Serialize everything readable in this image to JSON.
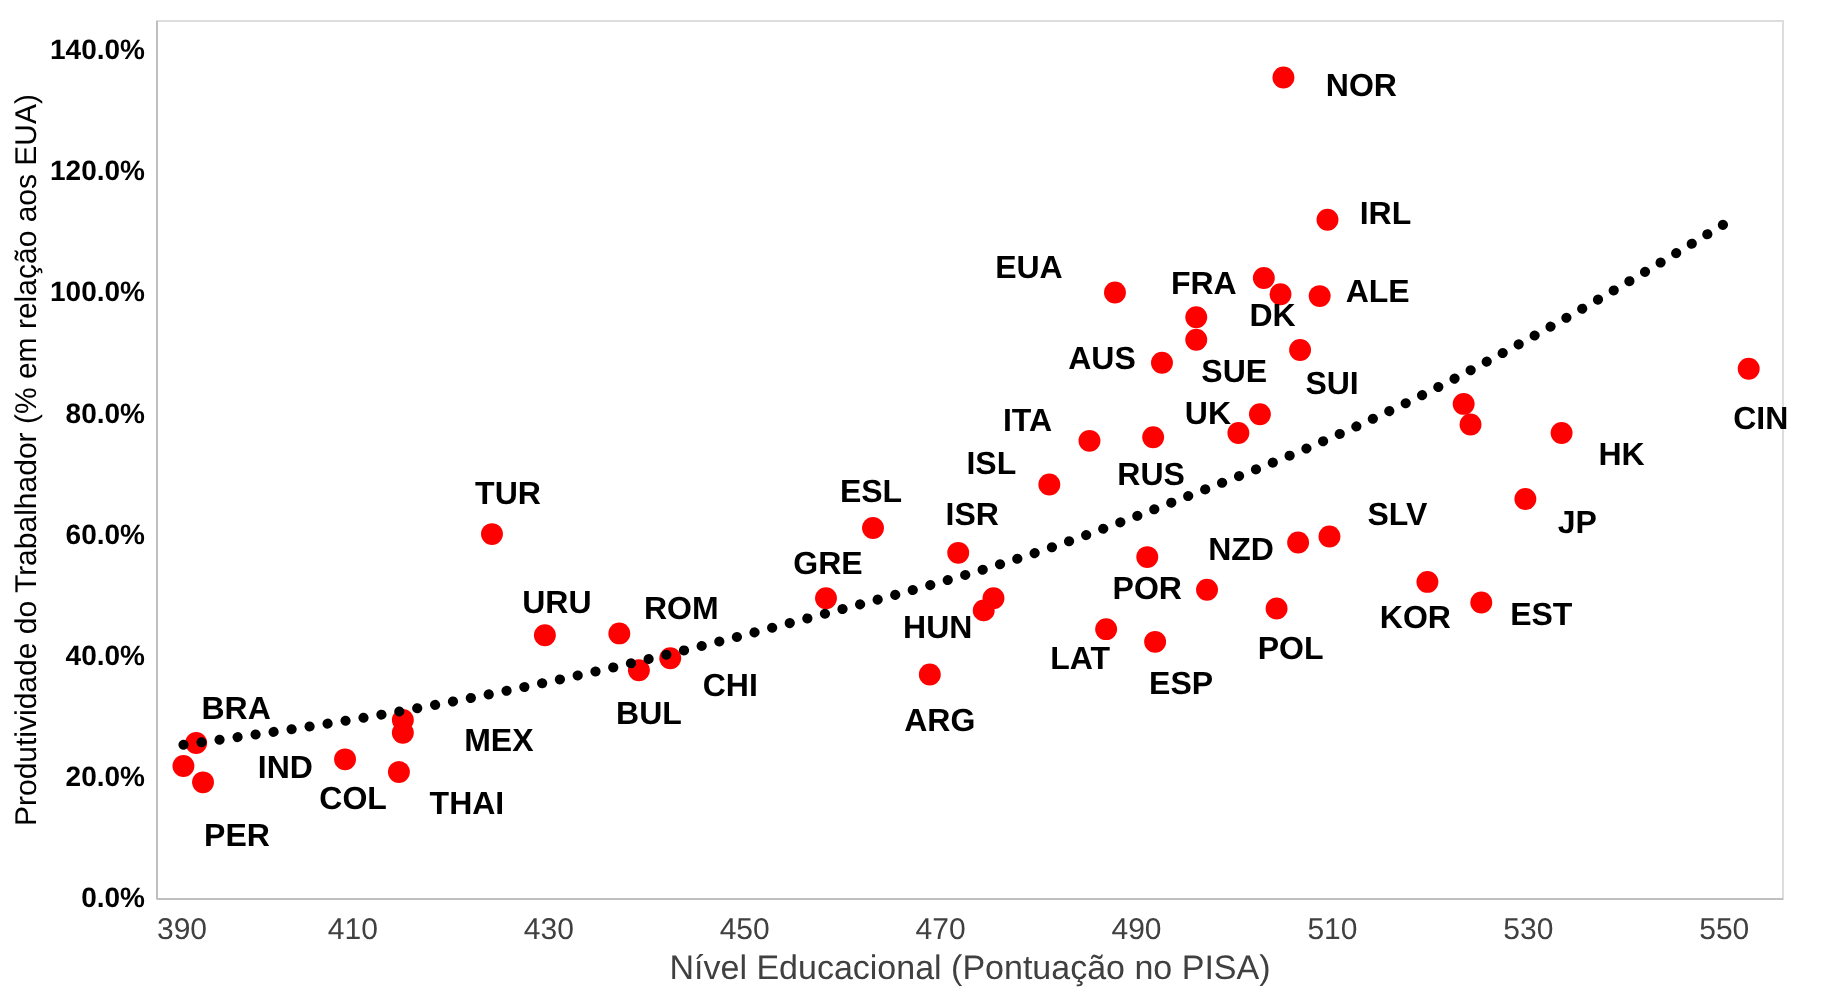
{
  "chart_data": {
    "type": "scatter",
    "xlabel": "Nível Educacional (Pontuação no PISA)",
    "ylabel": "Produtividade do Trabalhador (% em relação aos EUA)",
    "xlim": [
      390,
      556
    ],
    "xticks": [
      390,
      410,
      430,
      450,
      470,
      490,
      510,
      530,
      550
    ],
    "ylim": [
      0,
      145
    ],
    "yticks": [
      {
        "value": 0,
        "label": "0.0%"
      },
      {
        "value": 20,
        "label": "20.0%"
      },
      {
        "value": 40,
        "label": "40.0%"
      },
      {
        "value": 60,
        "label": "60.0%"
      },
      {
        "value": 80,
        "label": "80.0%"
      },
      {
        "value": 100,
        "label": "100.0%"
      },
      {
        "value": 120,
        "label": "120.0%"
      },
      {
        "value": 140,
        "label": "140.0%"
      }
    ],
    "grid": false,
    "marker": "circle",
    "series": [
      {
        "color": "#ff0000",
        "x": [
          394.1,
          392.8,
          394.8,
          409.3,
          414.8,
          415.2,
          415.2,
          424.3,
          429.7,
          437.3,
          439.3,
          442.5,
          458.4,
          463.2,
          471.9,
          475.5,
          474.5,
          469.0,
          481.2,
          485.3,
          487.9,
          492.7,
          496.2,
          496.2,
          491.8,
          502.7,
          500.5,
          491.2,
          487.0,
          492.0,
          497.3,
          504.4,
          506.6,
          509.8,
          506.8,
          505.1,
          509.6,
          503.1,
          504.8,
          508.8,
          523.5,
          524.2,
          533.5,
          529.8,
          519.8,
          525.3,
          552.6
        ],
        "values": [
          25.6,
          21.8,
          19.1,
          22.9,
          20.8,
          27.3,
          29.4,
          60.1,
          43.4,
          43.7,
          37.6,
          39.6,
          49.5,
          61.1,
          57.0,
          49.5,
          47.5,
          36.9,
          68.3,
          75.5,
          100.0,
          88.4,
          95.9,
          92.2,
          76.1,
          79.9,
          76.8,
          56.3,
          44.4,
          42.3,
          50.9,
          47.8,
          58.7,
          59.7,
          90.5,
          135.5,
          112.0,
          102.4,
          99.7,
          99.4,
          81.6,
          78.2,
          76.8,
          65.9,
          52.2,
          48.8,
          87.4
        ]
      },
      {
        "type": "line",
        "color": "#000000",
        "line_style": "dotted",
        "marker": "none",
        "x": [
          392.8,
          414.5,
          436.2,
          454.7,
          481.6,
          496.2,
          507.7,
          518.7,
          532.2,
          550.4
        ],
        "values": [
          25.3,
          30.7,
          37.9,
          45.4,
          58.0,
          66.9,
          74.4,
          82.6,
          94.2,
          111.6
        ]
      }
    ],
    "annotations": [
      {
        "text": "BRA",
        "x": 394.1,
        "y": 25.6
      },
      {
        "text": "IND",
        "x": 392.8,
        "y": 21.8
      },
      {
        "text": "PER",
        "x": 394.8,
        "y": 19.1
      },
      {
        "text": "COL",
        "x": 409.3,
        "y": 22.9
      },
      {
        "text": "THAI",
        "x": 414.8,
        "y": 20.8
      },
      {
        "text": "MEX",
        "x": 415.2,
        "y": 27.3
      },
      {
        "text": "TUR",
        "x": 424.3,
        "y": 60.1
      },
      {
        "text": "URU",
        "x": 429.7,
        "y": 43.4
      },
      {
        "text": "ROM",
        "x": 437.3,
        "y": 43.7
      },
      {
        "text": "BUL",
        "x": 439.3,
        "y": 37.6
      },
      {
        "text": "CHI",
        "x": 442.5,
        "y": 39.6
      },
      {
        "text": "GRE",
        "x": 458.4,
        "y": 49.5
      },
      {
        "text": "ESL",
        "x": 463.2,
        "y": 61.1
      },
      {
        "text": "ISR",
        "x": 471.9,
        "y": 57.0
      },
      {
        "text": "ISL",
        "x": 481.2,
        "y": 68.3
      },
      {
        "text": "ITA",
        "x": 485.3,
        "y": 75.5
      },
      {
        "text": "EUA",
        "x": 487.9,
        "y": 100.0
      },
      {
        "text": "AUS",
        "x": 492.7,
        "y": 88.4
      },
      {
        "text": "FRA",
        "x": 503.1,
        "y": 102.4
      },
      {
        "text": "DK",
        "x": 504.8,
        "y": 99.7
      },
      {
        "text": "ALE",
        "x": 508.8,
        "y": 99.4
      },
      {
        "text": "IRL",
        "x": 509.6,
        "y": 112.0
      },
      {
        "text": "SUE",
        "x": 496.2,
        "y": 92.2
      },
      {
        "text": "SUI",
        "x": 506.8,
        "y": 90.5
      },
      {
        "text": "UK",
        "x": 502.7,
        "y": 79.9
      },
      {
        "text": "RUS",
        "x": 491.8,
        "y": 76.1
      },
      {
        "text": "HUN",
        "x": 474.5,
        "y": 47.5
      },
      {
        "text": "ARG",
        "x": 469.0,
        "y": 36.9
      },
      {
        "text": "POR",
        "x": 491.2,
        "y": 56.3
      },
      {
        "text": "LAT",
        "x": 487.0,
        "y": 44.4
      },
      {
        "text": "ESP",
        "x": 492.0,
        "y": 42.3
      },
      {
        "text": "NZD",
        "x": 497.3,
        "y": 50.9
      },
      {
        "text": "POL",
        "x": 504.4,
        "y": 47.8
      },
      {
        "text": "SLV",
        "x": 509.8,
        "y": 59.7
      },
      {
        "text": "KOR",
        "x": 519.8,
        "y": 52.2
      },
      {
        "text": "EST",
        "x": 525.3,
        "y": 48.8
      },
      {
        "text": "HK",
        "x": 533.5,
        "y": 76.8
      },
      {
        "text": "JP",
        "x": 529.8,
        "y": 65.9
      },
      {
        "text": "CIN",
        "x": 552.6,
        "y": 87.4
      },
      {
        "text": "NOR",
        "x": 505.1,
        "y": 135.5
      }
    ]
  }
}
